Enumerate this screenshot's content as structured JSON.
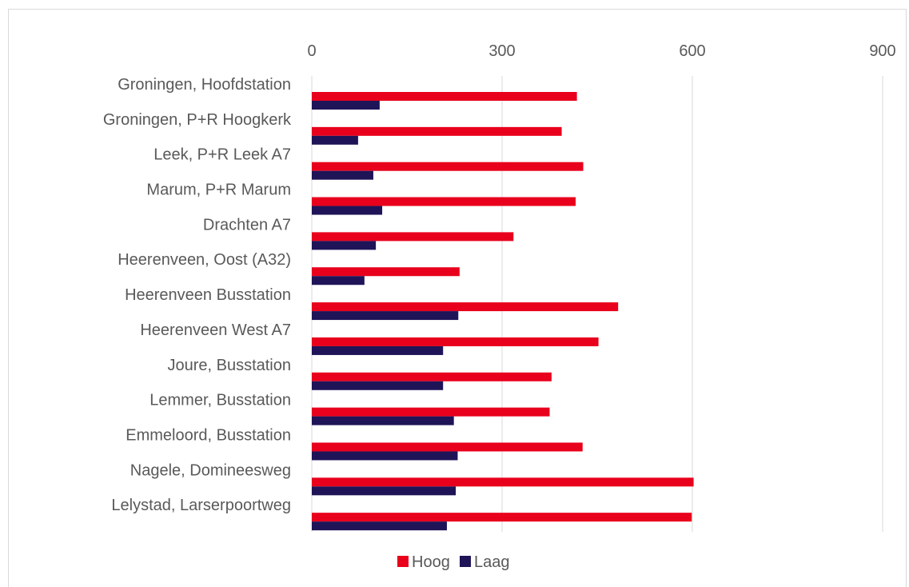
{
  "chart_data": {
    "type": "bar",
    "orientation": "horizontal",
    "title": "",
    "xlabel": "",
    "ylabel": "",
    "xlim": [
      0,
      900
    ],
    "x_ticks": [
      "0",
      "300",
      "600",
      "900"
    ],
    "x_axis_position": "top",
    "grid": "vertical",
    "legend_position": "bottom",
    "categories": [
      "Groningen, Hoofdstation",
      "Groningen, P+R Hoogkerk",
      "Leek, P+R Leek A7",
      "Marum, P+R Marum",
      "Drachten A7",
      "Heerenveen, Oost (A32)",
      "Heerenveen Busstation",
      "Heerenveen West A7",
      "Joure, Busstation",
      "Lemmer, Busstation",
      "Emmeloord, Busstation",
      "Nagele, Domineesweg",
      "Lelystad, Larserpoortweg"
    ],
    "series": [
      {
        "name": "Hoog",
        "color": "#e8001c",
        "values": [
          418,
          394,
          428,
          416,
          318,
          233,
          483,
          452,
          378,
          375,
          427,
          602,
          599
        ]
      },
      {
        "name": "Laag",
        "color": "#1f1457",
        "values": [
          107,
          73,
          97,
          111,
          101,
          83,
          231,
          207,
          207,
          224,
          230,
          227,
          213
        ]
      }
    ]
  }
}
